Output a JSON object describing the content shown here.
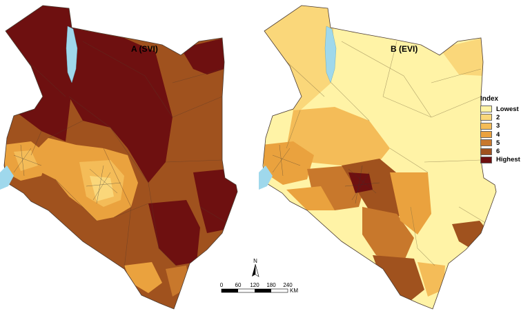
{
  "panels": {
    "a": {
      "title": "A (SVI)"
    },
    "b": {
      "title": "B (EVI)"
    }
  },
  "legend": {
    "title": "Index",
    "items": [
      {
        "label": "Lowest",
        "color": "#FFF3A6"
      },
      {
        "label": "2",
        "color": "#FAD77A"
      },
      {
        "label": "3",
        "color": "#F4BC58"
      },
      {
        "label": "4",
        "color": "#EAA23E"
      },
      {
        "label": "5",
        "color": "#C8782C"
      },
      {
        "label": "6",
        "color": "#A0521E"
      },
      {
        "label": "Highest",
        "color": "#6E1010"
      }
    ]
  },
  "water_color": "#9FD8EC",
  "north_arrow": {
    "label": "N"
  },
  "scale_bar": {
    "ticks": [
      "0",
      "60",
      "120",
      "180",
      "240"
    ],
    "unit": "KM"
  }
}
